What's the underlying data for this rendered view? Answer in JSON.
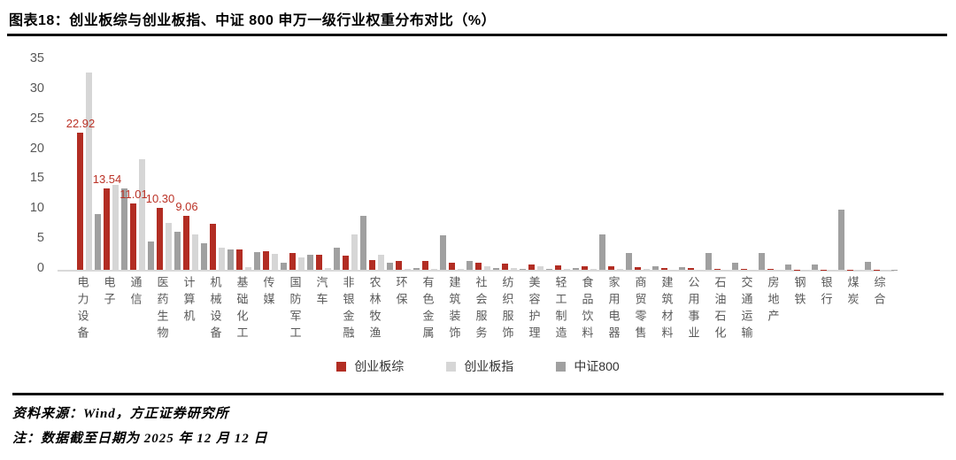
{
  "title": "图表18：创业板综与创业板指、中证 800 申万一级行业权重分布对比（%）",
  "source_line": "资料来源：Wind，方正证券研究所",
  "note_line": "注：数据截至日期为 2025 年 12 月 12 日",
  "colors": {
    "chinext_composite": "#b22d23",
    "chinext_index": "#d6d6d6",
    "csi800": "#a0a0a0",
    "data_label": "#bb3226",
    "axis_text": "#595959",
    "axis_line": "#d9d9d9"
  },
  "chart_data": {
    "type": "bar",
    "title": "创业板综与创业板指、中证 800 申万一级行业权重分布对比（%）",
    "categories": [
      "电力设备",
      "电子",
      "通信",
      "医药生物",
      "计算机",
      "机械设备",
      "基础化工",
      "传媒",
      "国防军工",
      "汽车",
      "非银金融",
      "农林牧渔",
      "环保",
      "有色金属",
      "建筑装饰",
      "社会服务",
      "纺织服饰",
      "美容护理",
      "轻工制造",
      "食品饮料",
      "家用电器",
      "商贸零售",
      "建筑材料",
      "公用事业",
      "石油石化",
      "交通运输",
      "房地产",
      "钢铁",
      "银行",
      "煤炭",
      "综合"
    ],
    "series": [
      {
        "name": "创业板综",
        "color": "#b22d23",
        "values": [
          22.92,
          13.54,
          11.01,
          10.3,
          9.06,
          7.75,
          3.45,
          3.15,
          2.85,
          2.55,
          2.3,
          1.65,
          1.5,
          1.45,
          1.25,
          1.15,
          1.05,
          0.95,
          0.8,
          0.65,
          0.62,
          0.5,
          0.35,
          0.25,
          0.15,
          0.12,
          0.08,
          0.06,
          0.05,
          0.04,
          0.02
        ]
      },
      {
        "name": "创业板指",
        "color": "#d6d6d6",
        "values": [
          33.0,
          14.2,
          18.5,
          7.8,
          5.9,
          3.7,
          0.4,
          2.6,
          2.0,
          0.3,
          5.9,
          2.5,
          0.2,
          0.1,
          0.15,
          0.6,
          0.25,
          0.55,
          0.15,
          0.1,
          0.1,
          0.1,
          0.05,
          0.05,
          0.05,
          0.05,
          0.02,
          0.02,
          0.02,
          0.02,
          0.01
        ]
      },
      {
        "name": "中证800",
        "color": "#a0a0a0",
        "values": [
          9.3,
          13.6,
          4.7,
          6.4,
          4.4,
          3.4,
          2.9,
          1.2,
          2.5,
          3.7,
          9.0,
          1.2,
          0.3,
          5.8,
          1.5,
          0.35,
          0.1,
          0.1,
          0.3,
          5.9,
          2.75,
          0.6,
          0.5,
          2.75,
          1.25,
          2.8,
          0.9,
          0.95,
          10.1,
          1.4,
          0.05
        ]
      }
    ],
    "data_labels": {
      "series": "创业板综",
      "values": [
        "22.92",
        "13.54",
        "11.01",
        "10.30",
        "9.06"
      ]
    },
    "y_ticks": [
      0,
      5,
      10,
      15,
      20,
      25,
      30,
      35
    ],
    "ylim": [
      0,
      35
    ],
    "grid": false,
    "legend_position": "bottom"
  }
}
